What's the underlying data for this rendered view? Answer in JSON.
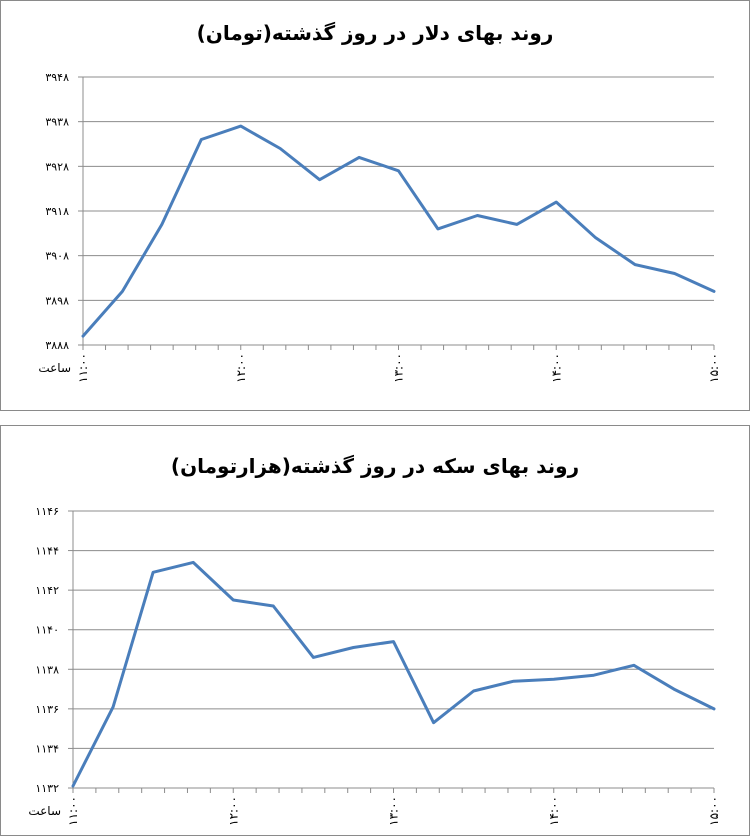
{
  "chart_data": [
    {
      "type": "line",
      "title": "روند بهای دلار در روز گذشته(تومان)",
      "xlabel": "ساعت",
      "ylabel": "",
      "x_tick_labels": [
        "۱۱:۰۰",
        "۱۲:۰۰",
        "۱۳:۰۰",
        "۱۴:۰۰",
        "۱۵:۰۰"
      ],
      "x_tick_values": [
        11,
        12,
        13,
        14,
        15
      ],
      "xlim": [
        11,
        15
      ],
      "y_tick_labels": [
        "۳۸۸۸",
        "۳۸۹۸",
        "۳۹۰۸",
        "۳۹۱۸",
        "۳۹۲۸",
        "۳۹۳۸",
        "۳۹۴۸"
      ],
      "y_tick_values": [
        3888,
        3898,
        3908,
        3918,
        3928,
        3938,
        3948
      ],
      "ylim": [
        3888,
        3948
      ],
      "grid": true,
      "color": "#4a7ebb",
      "series": [
        {
          "x": [
            11.0,
            11.25,
            11.5,
            11.75,
            12.0,
            12.25,
            12.5,
            12.75,
            13.0,
            13.25,
            13.5,
            13.75,
            14.0,
            14.25,
            14.5,
            14.75,
            15.0
          ],
          "values": [
            3890,
            3900,
            3915,
            3934,
            3937,
            3932,
            3925,
            3930,
            3927,
            3914,
            3917,
            3915,
            3920,
            3912,
            3906,
            3904,
            3900
          ]
        }
      ]
    },
    {
      "type": "line",
      "title": "روند بهای سکه در روز گذشته(هزارتومان)",
      "xlabel": "ساعت",
      "ylabel": "",
      "x_tick_labels": [
        "۱۱:۰۰",
        "۱۲:۰۰",
        "۱۳:۰۰",
        "۱۴:۰۰",
        "۱۵:۰۰"
      ],
      "x_tick_values": [
        11,
        12,
        13,
        14,
        15
      ],
      "xlim": [
        11,
        15
      ],
      "y_tick_labels": [
        "۱۱۳۲",
        "۱۱۳۴",
        "۱۱۳۶",
        "۱۱۳۸",
        "۱۱۴۰",
        "۱۱۴۲",
        "۱۱۴۴",
        "۱۱۴۶"
      ],
      "y_tick_values": [
        1132,
        1134,
        1136,
        1138,
        1140,
        1142,
        1144,
        1146
      ],
      "ylim": [
        1132,
        1146
      ],
      "grid": true,
      "color": "#4a7ebb",
      "series": [
        {
          "x": [
            11.0,
            11.25,
            11.5,
            11.75,
            12.0,
            12.25,
            12.5,
            12.75,
            13.0,
            13.25,
            13.5,
            13.75,
            14.0,
            14.25,
            14.5,
            14.75,
            15.0
          ],
          "values": [
            1132.1,
            1136.1,
            1142.9,
            1143.4,
            1141.5,
            1141.2,
            1138.6,
            1139.1,
            1139.4,
            1135.3,
            1136.9,
            1137.4,
            1137.5,
            1137.7,
            1138.2,
            1137.0,
            1136.0
          ]
        }
      ]
    }
  ]
}
